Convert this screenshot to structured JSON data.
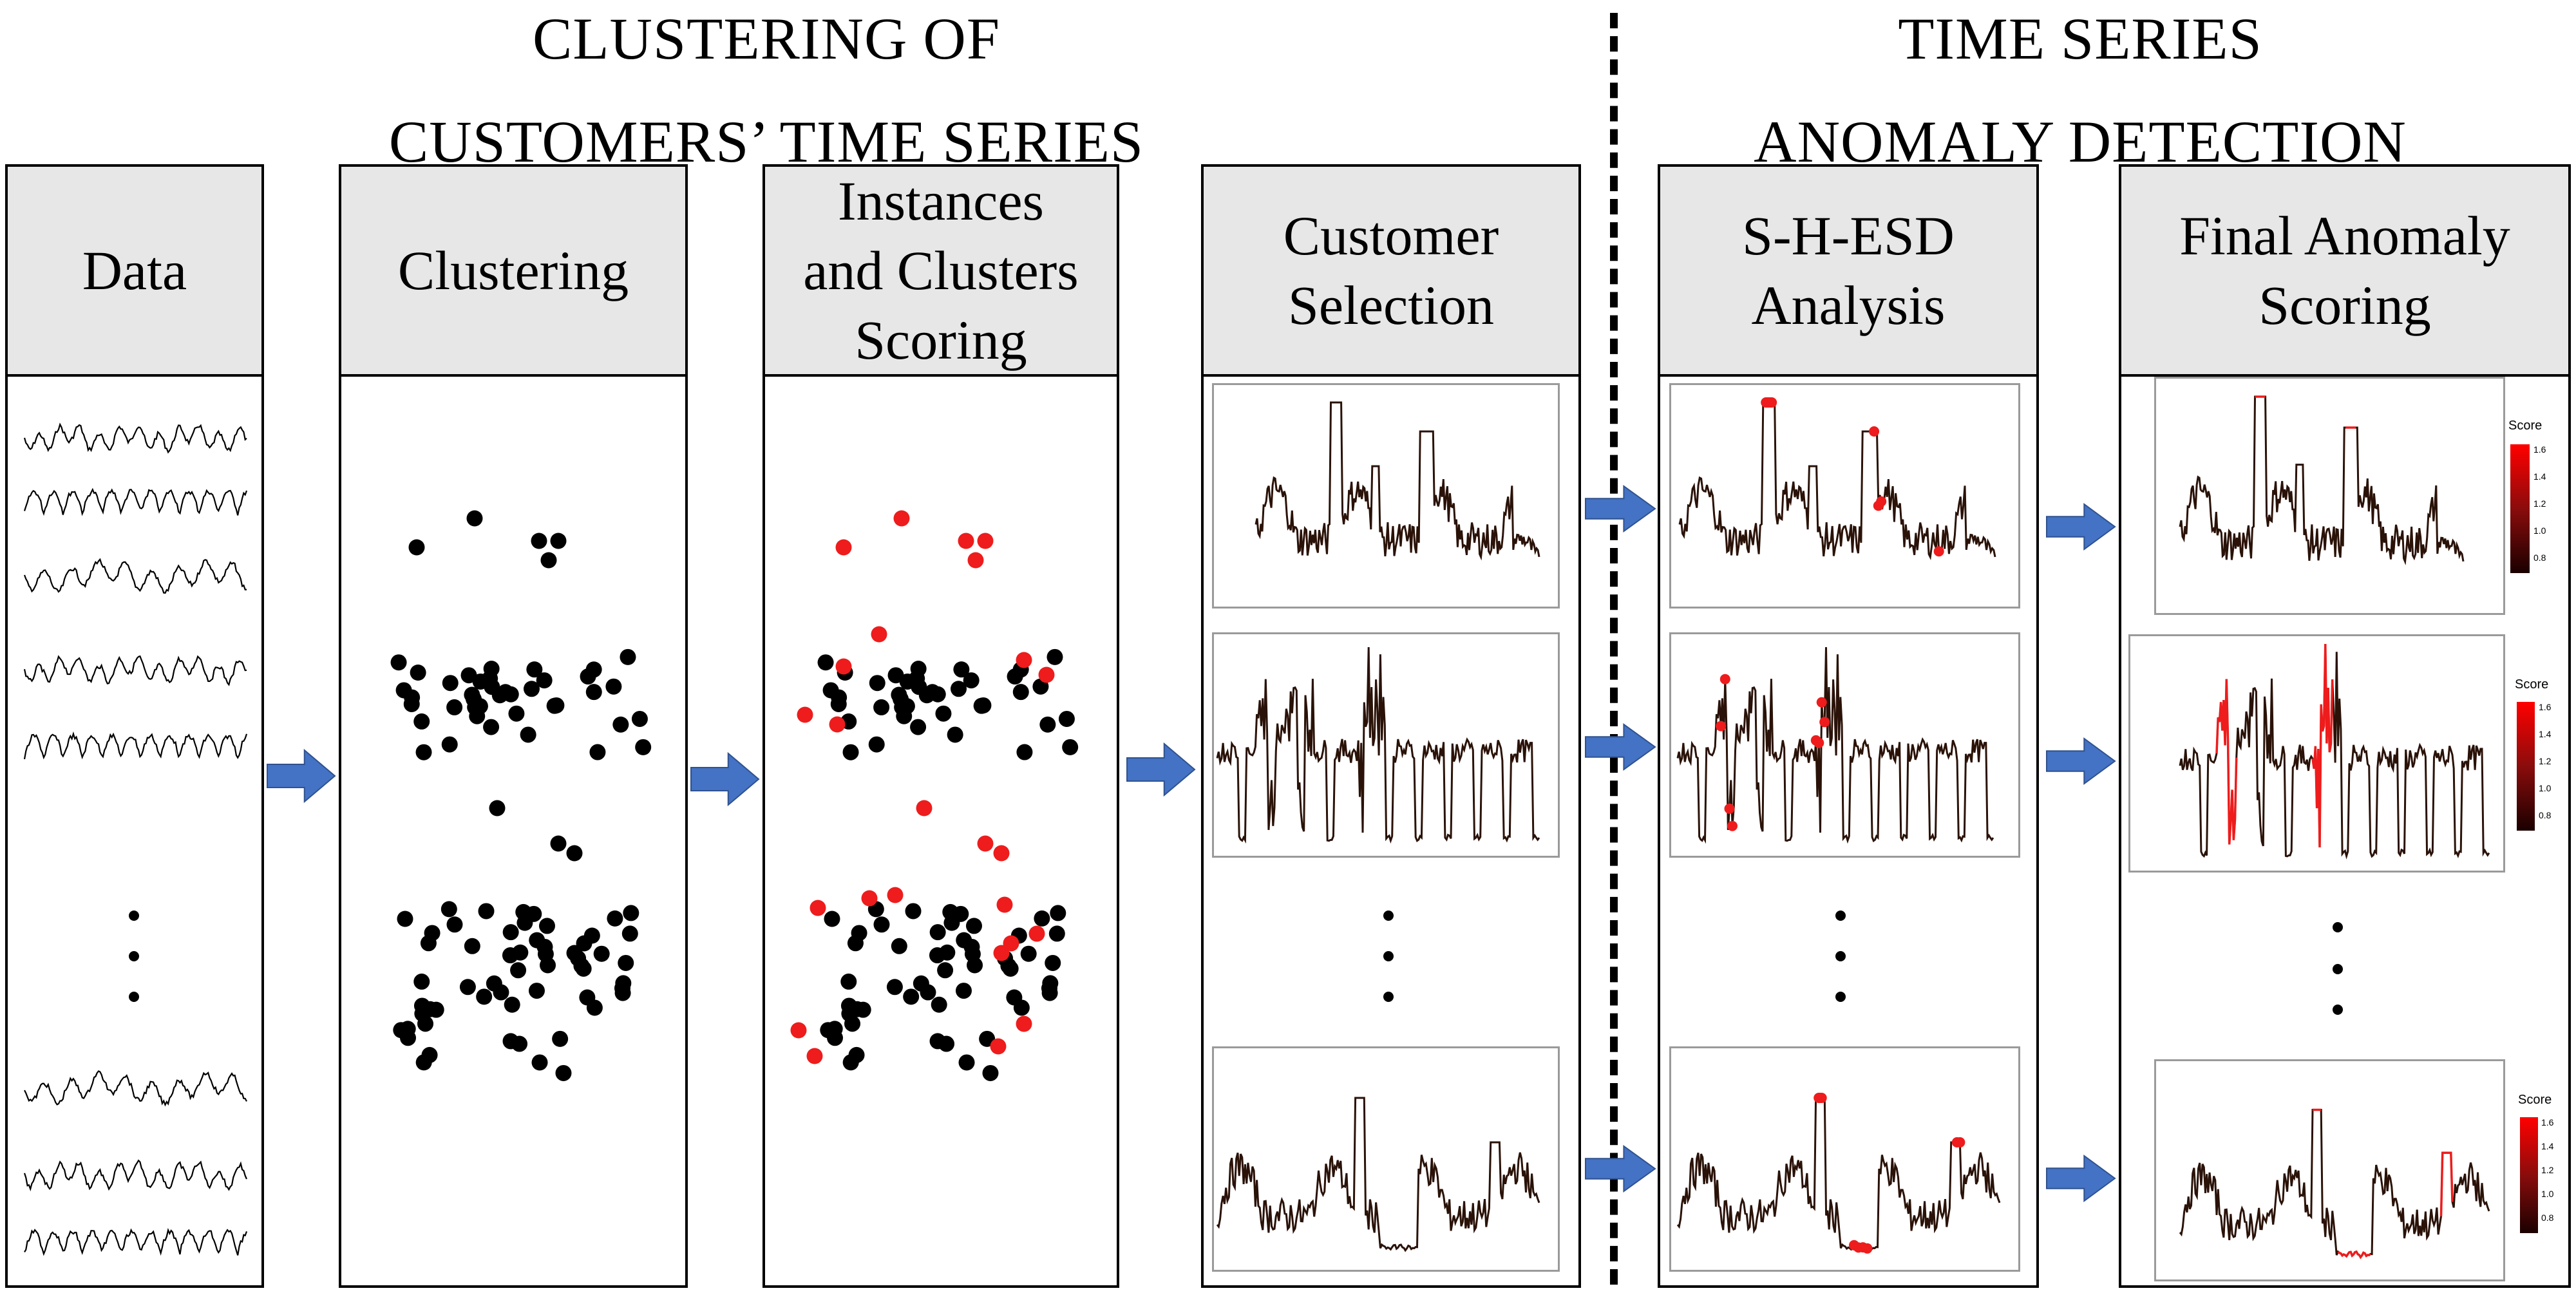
{
  "titles": {
    "clustering": [
      "CLUSTERING OF",
      "CUSTOMERS’ TIME SERIES"
    ],
    "anomaly": [
      "TIME SERIES",
      "ANOMALY DETECTION"
    ]
  },
  "panels": [
    {
      "id": "data",
      "lines": [
        "Data"
      ]
    },
    {
      "id": "clustering",
      "lines": [
        "Clustering"
      ]
    },
    {
      "id": "scoring",
      "lines": [
        "Instances",
        "and Clusters",
        "Scoring"
      ]
    },
    {
      "id": "selection",
      "lines": [
        "Customer",
        "Selection"
      ]
    },
    {
      "id": "shesd",
      "lines": [
        "S-H-ESD",
        "Analysis"
      ]
    },
    {
      "id": "final",
      "lines": [
        "Final Anomaly",
        "Scoring"
      ]
    }
  ],
  "legend": {
    "title": "Score",
    "ticks": [
      "1.6",
      "1.4",
      "1.2",
      "1.0",
      "0.8"
    ]
  },
  "colors": {
    "arrow": "#4472c4",
    "anomaly": "#ee1c1c",
    "series": "#2a1208",
    "header_bg": "#e7e7e7"
  }
}
